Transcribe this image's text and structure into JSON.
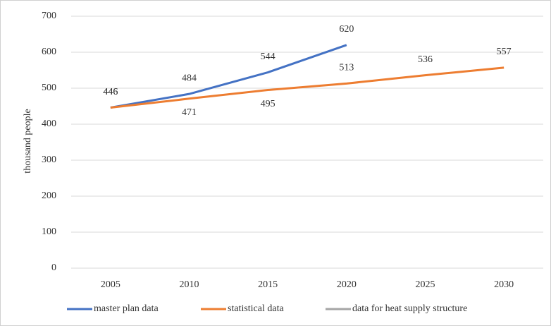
{
  "chart_data": {
    "type": "line",
    "y_label": "thousand people",
    "categories": [
      "2005",
      "2010",
      "2015",
      "2020",
      "2025",
      "2030"
    ],
    "series": [
      {
        "name": "master plan data",
        "color": "#4472c4",
        "values": [
          446,
          484,
          544,
          620,
          null,
          null
        ]
      },
      {
        "name": "statistical data",
        "color": "#ed7d31",
        "values": [
          446,
          471,
          495,
          513,
          536,
          557
        ]
      },
      {
        "name": "data for heat supply structure",
        "color": "#a5a5a5",
        "values": [
          null,
          null,
          null,
          null,
          null,
          null
        ]
      }
    ],
    "ylim": [
      0,
      700
    ],
    "yticks": [
      0,
      100,
      200,
      300,
      400,
      500,
      600,
      700
    ],
    "grid": true,
    "legend": "bottom"
  }
}
